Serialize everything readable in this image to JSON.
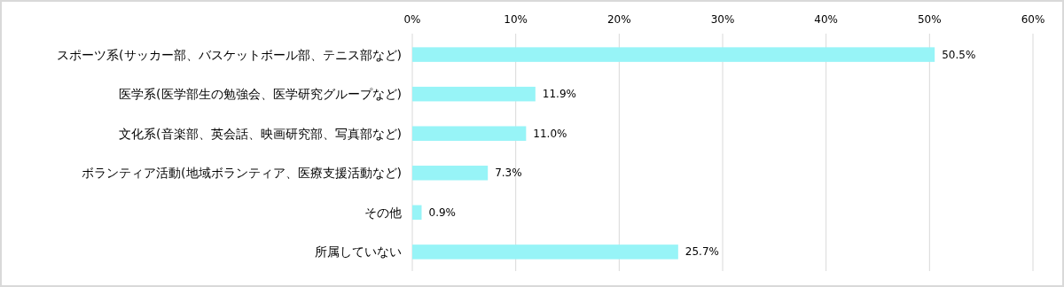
{
  "chart_data": {
    "type": "bar",
    "orientation": "horizontal",
    "categories": [
      "スポーツ系(サッカー部、バスケットボール部、テニス部など)",
      "医学系(医学部生の勉強会、医学研究グループなど)",
      "文化系(音楽部、英会話、映画研究部、写真部など)",
      "ボランティア活動(地域ボランティア、医療支援活動など)",
      "その他",
      "所属していない"
    ],
    "values": [
      50.5,
      11.9,
      11.0,
      7.3,
      0.9,
      25.7
    ],
    "value_labels": [
      "50.5%",
      "11.9%",
      "11.0%",
      "7.3%",
      "0.9%",
      "25.7%"
    ],
    "color": "#97f4f7",
    "xlim": [
      0,
      60
    ],
    "xticks": [
      {
        "value": 0,
        "label": "0%"
      },
      {
        "value": 10,
        "label": "10%"
      },
      {
        "value": 20,
        "label": "20%"
      },
      {
        "value": 30,
        "label": "30%"
      },
      {
        "value": 40,
        "label": "40%"
      },
      {
        "value": 50,
        "label": "50%"
      },
      {
        "value": 60,
        "label": "60%"
      }
    ],
    "grid": "x"
  }
}
